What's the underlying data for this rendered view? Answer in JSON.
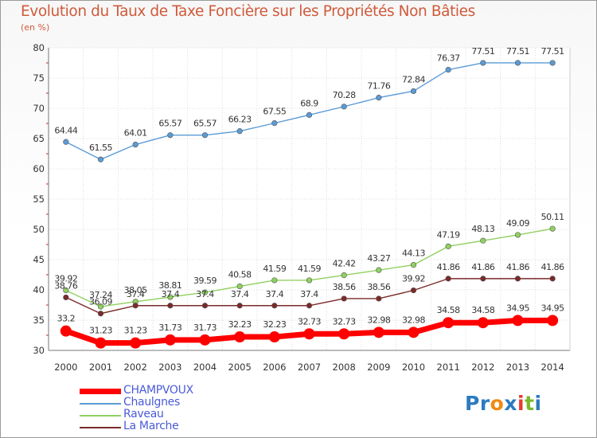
{
  "title": "Evolution du Taux de Taxe Foncière sur les Propriétés Non Bâties",
  "subtitle": "(en %)",
  "logo": {
    "text": "Proxiti",
    "letters": [
      "P",
      "r",
      "o",
      "x",
      "i",
      "t",
      "i"
    ],
    "colors": [
      "#2b7bc0",
      "#2b7bc0",
      "#f08a12",
      "#2b7bc0",
      "#e63b2e",
      "#7ab82e",
      "#2b7bc0"
    ]
  },
  "chart_data": {
    "type": "line",
    "title": "Evolution du Taux de Taxe Foncière sur les Propriétés Non Bâties",
    "ylabel": "(en %)",
    "xlabel": "",
    "x": [
      "2000",
      "2001",
      "2002",
      "2003",
      "2004",
      "2005",
      "2006",
      "2007",
      "2008",
      "2009",
      "2010",
      "2011",
      "2012",
      "2013",
      "2014"
    ],
    "ylim": [
      30,
      80
    ],
    "yticks": [
      "30",
      "35",
      "40",
      "45",
      "50",
      "55",
      "60",
      "65",
      "70",
      "75",
      "80"
    ],
    "grid": true,
    "legend_position": "bottom-left",
    "series": [
      {
        "name": "CHAMPVOUX",
        "color": "#ff0000",
        "values": [
          33.2,
          31.23,
          31.23,
          31.73,
          31.73,
          32.23,
          32.23,
          32.73,
          32.73,
          32.98,
          32.98,
          34.58,
          34.58,
          34.95,
          34.95
        ],
        "labels": [
          "33.2",
          "31.23",
          "31.23",
          "31.73",
          "31.73",
          "32.23",
          "32.23",
          "32.73",
          "32.73",
          "32.98",
          "32.98",
          "34.58",
          "34.58",
          "34.95",
          "34.95"
        ]
      },
      {
        "name": "Chaulgnes",
        "color": "#5b9bd5",
        "values": [
          64.44,
          61.55,
          64.01,
          65.57,
          65.57,
          66.23,
          67.55,
          68.9,
          70.28,
          71.76,
          72.84,
          76.37,
          77.51,
          77.51,
          77.51
        ],
        "labels": [
          "64.44",
          "61.55",
          "64.01",
          "65.57",
          "65.57",
          "66.23",
          "67.55",
          "68.9",
          "70.28",
          "71.76",
          "72.84",
          "76.37",
          "77.51",
          "77.51",
          "77.51"
        ]
      },
      {
        "name": "Raveau",
        "color": "#90d060",
        "values": [
          39.92,
          37.24,
          38.05,
          38.81,
          39.59,
          40.58,
          41.59,
          41.59,
          42.42,
          43.27,
          44.13,
          47.19,
          48.13,
          49.09,
          50.11
        ],
        "labels": [
          "39.92",
          "37.24",
          "38.05",
          "38.81",
          "39.59",
          "40.58",
          "41.59",
          "41.59",
          "42.42",
          "43.27",
          "44.13",
          "47.19",
          "48.13",
          "49.09",
          "50.11"
        ]
      },
      {
        "name": "La Marche",
        "color": "#7a2a2a",
        "values": [
          38.76,
          36.09,
          37.4,
          37.4,
          37.4,
          37.4,
          37.4,
          37.4,
          38.56,
          38.56,
          39.92,
          41.86,
          41.86,
          41.86,
          41.86
        ],
        "labels": [
          "38.76",
          "36.09",
          "37.4",
          "37.4",
          "37.4",
          "37.4",
          "37.4",
          "37.4",
          "38.56",
          "38.56",
          "39.92",
          "41.86",
          "41.86",
          "41.86",
          "41.86"
        ]
      }
    ]
  }
}
